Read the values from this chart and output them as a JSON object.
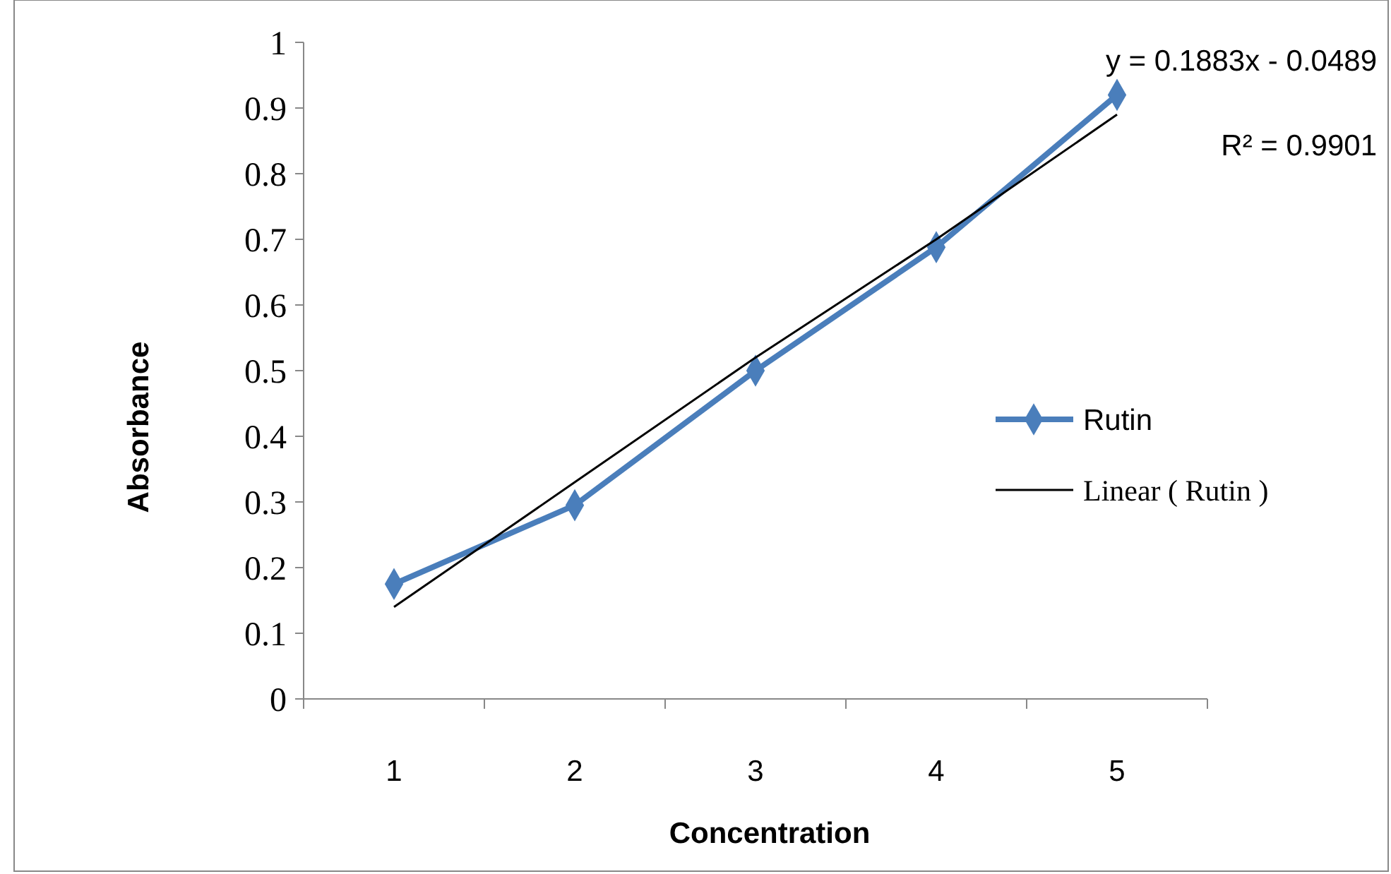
{
  "chart_data": {
    "type": "line",
    "xlabel": "Concentration",
    "ylabel": "Absorbance",
    "categories": [
      "1",
      "2",
      "3",
      "4",
      "5"
    ],
    "ylim": [
      0,
      1
    ],
    "yticks": [
      0,
      0.1,
      0.2,
      0.3,
      0.4,
      0.5,
      0.6,
      0.7,
      0.8,
      0.9,
      1
    ],
    "grid": false,
    "legend": "right",
    "annotations": [
      "y = 0.1883x - 0.0489",
      "R² = 0.9901"
    ],
    "series": [
      {
        "name": "Rutin",
        "color": "#4a7ebb",
        "values": [
          0.175,
          0.295,
          0.5,
          0.688,
          0.92
        ],
        "marker": "diamond",
        "line_style": "solid"
      },
      {
        "name": "Linear ( Rutin )",
        "type": "line",
        "color": "#000000",
        "x": [
          "1",
          "2",
          "3",
          "4",
          "5"
        ],
        "values": [
          0.14,
          0.33,
          0.52,
          0.7,
          0.89
        ],
        "marker": "none",
        "line_style": "solid"
      }
    ]
  }
}
